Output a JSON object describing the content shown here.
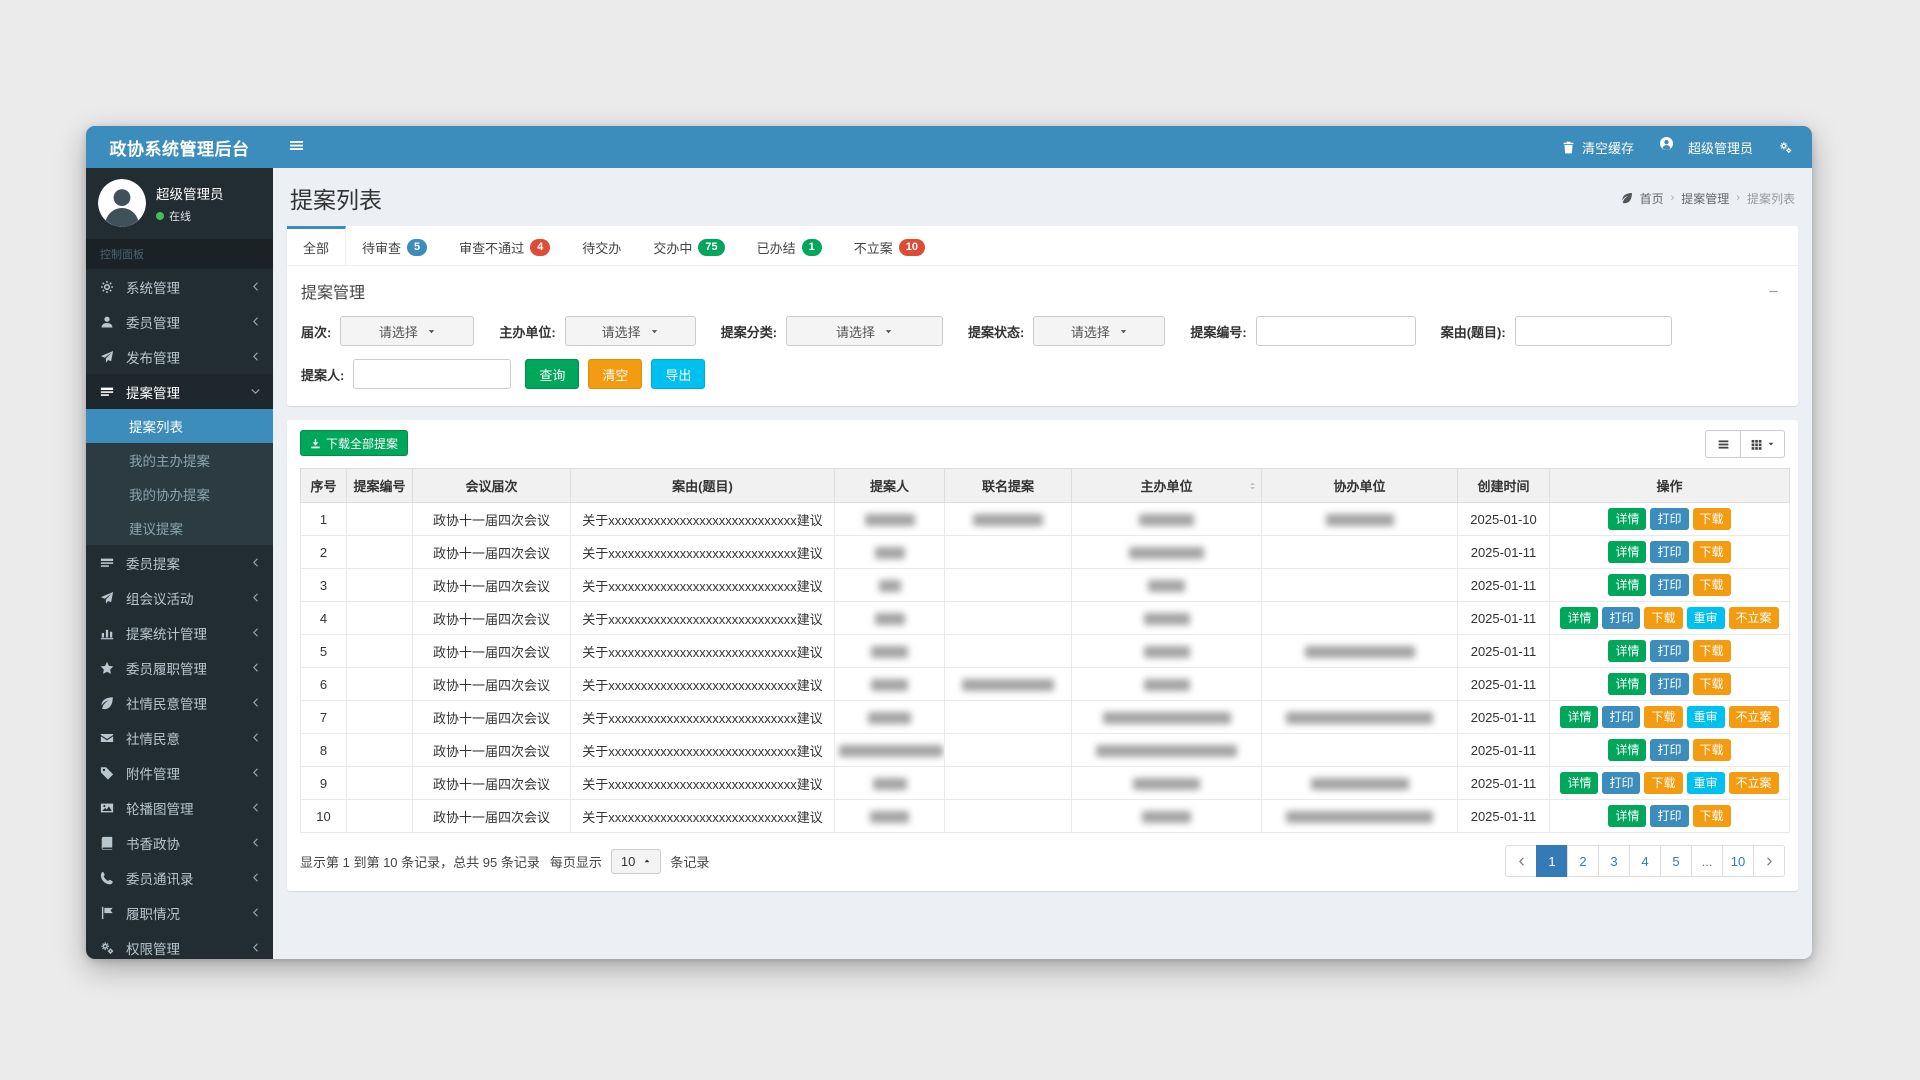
{
  "navbar": {
    "brand": "政协系统管理后台",
    "clear_cache": "清空缓存",
    "user": "超级管理员"
  },
  "sidebar": {
    "user": {
      "name": "超级管理员",
      "status": "在线"
    },
    "section": "控制面板",
    "items": [
      {
        "label": "系统管理",
        "icon": "gear-icon"
      },
      {
        "label": "委员管理",
        "icon": "user-icon"
      },
      {
        "label": "发布管理",
        "icon": "send-icon"
      },
      {
        "label": "提案管理",
        "icon": "card-icon",
        "open": true,
        "children": [
          {
            "label": "提案列表",
            "active": true
          },
          {
            "label": "我的主办提案"
          },
          {
            "label": "我的协办提案"
          },
          {
            "label": "建议提案"
          }
        ]
      },
      {
        "label": "委员提案",
        "icon": "card-icon"
      },
      {
        "label": "组会议活动",
        "icon": "send-icon"
      },
      {
        "label": "提案统计管理",
        "icon": "chart-icon"
      },
      {
        "label": "委员履职管理",
        "icon": "star-icon"
      },
      {
        "label": "社情民意管理",
        "icon": "leaf-icon"
      },
      {
        "label": "社情民意",
        "icon": "mail-icon"
      },
      {
        "label": "附件管理",
        "icon": "tag-icon"
      },
      {
        "label": "轮播图管理",
        "icon": "image-icon"
      },
      {
        "label": "书香政协",
        "icon": "book-icon"
      },
      {
        "label": "委员通讯录",
        "icon": "phone-icon"
      },
      {
        "label": "履职情况",
        "icon": "flag-icon"
      },
      {
        "label": "权限管理",
        "icon": "gears-icon"
      }
    ]
  },
  "page": {
    "title": "提案列表",
    "breadcrumb": [
      "首页",
      "提案管理",
      "提案列表"
    ]
  },
  "tabs": [
    {
      "label": "全部",
      "active": true
    },
    {
      "label": "待审查",
      "badge": "5",
      "badge_color": "#3c8dbc"
    },
    {
      "label": "审查不通过",
      "badge": "4",
      "badge_color": "#dd4b39"
    },
    {
      "label": "待交办"
    },
    {
      "label": "交办中",
      "badge": "75",
      "badge_color": "#00a65a"
    },
    {
      "label": "已办结",
      "badge": "1",
      "badge_color": "#00a65a"
    },
    {
      "label": "不立案",
      "badge": "10",
      "badge_color": "#dd4b39"
    }
  ],
  "filter": {
    "panel_title": "提案管理",
    "select_placeholder": "请选择",
    "labels": {
      "round": "届次:",
      "host": "主办单位:",
      "category": "提案分类:",
      "status": "提案状态:",
      "no": "提案编号:",
      "title": "案由(题目):",
      "proposer": "提案人:"
    },
    "buttons": {
      "search": "查询",
      "clear": "清空",
      "export": "导出"
    }
  },
  "toolbar": {
    "download_all": "下载全部提案"
  },
  "table": {
    "headers": [
      "序号",
      "提案编号",
      "会议届次",
      "案由(题目)",
      "提案人",
      "联名提案",
      "主办单位",
      "协办单位",
      "创建时间",
      "操作"
    ],
    "action_labels": {
      "detail": "详情",
      "print": "打印",
      "download": "下载",
      "recheck": "重审",
      "reject": "不立案"
    },
    "action_colors": {
      "detail": "#00a65a",
      "print": "#3c8dbc",
      "download": "#f39c12",
      "recheck": "#00c0ef",
      "reject": "#f39c12"
    },
    "rows": [
      {
        "seq": "1",
        "no": "",
        "session": "政协十一届四次会议",
        "title": "关于xxxxxxxxxxxxxxxxxxxxxxxxxxxxx建议",
        "created": "2025-01-10",
        "blur": {
          "proposer": 50,
          "joint": 70,
          "host": 55,
          "assist": 68
        },
        "actions": [
          "detail",
          "print",
          "download"
        ]
      },
      {
        "seq": "2",
        "no": "",
        "session": "政协十一届四次会议",
        "title": "关于xxxxxxxxxxxxxxxxxxxxxxxxxxxxx建议",
        "created": "2025-01-11",
        "blur": {
          "proposer": 30,
          "joint": 0,
          "host": 75,
          "assist": 0
        },
        "actions": [
          "detail",
          "print",
          "download"
        ]
      },
      {
        "seq": "3",
        "no": "",
        "session": "政协十一届四次会议",
        "title": "关于xxxxxxxxxxxxxxxxxxxxxxxxxxxxx建议",
        "created": "2025-01-11",
        "blur": {
          "proposer": 22,
          "joint": 0,
          "host": 37,
          "assist": 0
        },
        "actions": [
          "detail",
          "print",
          "download"
        ]
      },
      {
        "seq": "4",
        "no": "",
        "session": "政协十一届四次会议",
        "title": "关于xxxxxxxxxxxxxxxxxxxxxxxxxxxxx建议",
        "created": "2025-01-11",
        "blur": {
          "proposer": 30,
          "joint": 0,
          "host": 46,
          "assist": 0
        },
        "actions": [
          "detail",
          "print",
          "download",
          "recheck",
          "reject"
        ]
      },
      {
        "seq": "5",
        "no": "",
        "session": "政协十一届四次会议",
        "title": "关于xxxxxxxxxxxxxxxxxxxxxxxxxxxxx建议",
        "created": "2025-01-11",
        "blur": {
          "proposer": 37,
          "joint": 0,
          "host": 46,
          "assist": 110
        },
        "actions": [
          "detail",
          "print",
          "download"
        ]
      },
      {
        "seq": "6",
        "no": "",
        "session": "政协十一届四次会议",
        "title": "关于xxxxxxxxxxxxxxxxxxxxxxxxxxxxx建议",
        "created": "2025-01-11",
        "blur": {
          "proposer": 37,
          "joint": 92,
          "host": 46,
          "assist": 0
        },
        "actions": [
          "detail",
          "print",
          "download"
        ]
      },
      {
        "seq": "7",
        "no": "",
        "session": "政协十一届四次会议",
        "title": "关于xxxxxxxxxxxxxxxxxxxxxxxxxxxxx建议",
        "created": "2025-01-11",
        "blur": {
          "proposer": 43,
          "joint": 0,
          "host": 128,
          "assist": 147
        },
        "actions": [
          "detail",
          "print",
          "download",
          "recheck",
          "reject"
        ]
      },
      {
        "seq": "8",
        "no": "",
        "session": "政协十一届四次会议",
        "title": "关于xxxxxxxxxxxxxxxxxxxxxxxxxxxxx建议",
        "created": "2025-01-11",
        "blur": {
          "proposer": 104,
          "joint": 0,
          "host": 141,
          "assist": 0
        },
        "actions": [
          "detail",
          "print",
          "download"
        ]
      },
      {
        "seq": "9",
        "no": "",
        "session": "政协十一届四次会议",
        "title": "关于xxxxxxxxxxxxxxxxxxxxxxxxxxxxx建议",
        "created": "2025-01-11",
        "blur": {
          "proposer": 34,
          "joint": 0,
          "host": 67,
          "assist": 98
        },
        "actions": [
          "detail",
          "print",
          "download",
          "recheck",
          "reject"
        ]
      },
      {
        "seq": "10",
        "no": "",
        "session": "政协十一届四次会议",
        "title": "关于xxxxxxxxxxxxxxxxxxxxxxxxxxxxx建议",
        "created": "2025-01-11",
        "blur": {
          "proposer": 39,
          "joint": 0,
          "host": 49,
          "assist": 147
        },
        "actions": [
          "detail",
          "print",
          "download"
        ]
      }
    ]
  },
  "footer": {
    "summary": "显示第 1 到第 10 条记录，总共 95 条记录",
    "per_page_label": "每页显示",
    "page_size": "10",
    "records_label": "条记录",
    "pages": [
      "1",
      "2",
      "3",
      "4",
      "5",
      "...",
      "10"
    ],
    "active_page": "1"
  },
  "colors": {
    "accent": "#3c8dbc",
    "sidebar": "#222d32",
    "success": "#00a65a",
    "warning": "#f39c12",
    "info": "#00c0ef",
    "danger": "#dd4b39",
    "pagination_active": "#337ab7"
  }
}
